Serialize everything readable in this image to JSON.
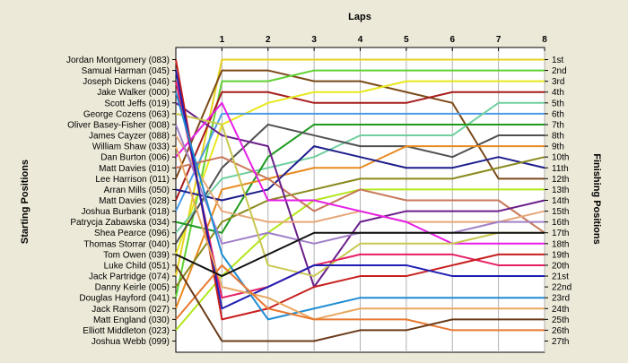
{
  "chart_data": {
    "type": "line",
    "title": "Laps",
    "ylabel_left": "Starting Positions",
    "ylabel_right": "Finishing Positions",
    "x": [
      0,
      1,
      2,
      3,
      4,
      5,
      6,
      7,
      8
    ],
    "x_tick_labels": [
      "1",
      "2",
      "3",
      "4",
      "5",
      "6",
      "7",
      "8"
    ],
    "xlim": [
      0,
      8
    ],
    "ylim": [
      1,
      27
    ],
    "grid": true,
    "starting_labels": [
      "Jordan Montgomery (083)",
      "Samual Harman (045)",
      "Joseph Dickens (046)",
      "Jake Walker (000)",
      "Scott Jeffs (019)",
      "George Cozens (063)",
      "Oliver Basey-Fisher (008)",
      "James Cayzer (088)",
      "William Shaw (033)",
      "Dan Burton (006)",
      "Matt Davies (010)",
      "Lee Harrison (011)",
      "Arran Mills (050)",
      "Matt Davies (028)",
      "Joshua Burbank (018)",
      "Patrycja Zabawska (034)",
      "Shea Pearce (096)",
      "Thomas Storrar (040)",
      "Tom Owen (039)",
      "Luke Child (051)",
      "Jack Partridge (074)",
      "Danny Keirle (005)",
      "Douglas Hayford (041)",
      "Jack Ransom (027)",
      "Matt England (030)",
      "Elliott Middleton (023)",
      "Joshua Webb (099)"
    ],
    "finishing_labels": [
      "1st",
      "2nd",
      "3rd",
      "4th",
      "5th",
      "6th",
      "7th",
      "8th",
      "9th",
      "10th",
      "11th",
      "12th",
      "13th",
      "14th",
      "15th",
      "16th",
      "17th",
      "18th",
      "19th",
      "20th",
      "21st",
      "22nd",
      "23rd",
      "24th",
      "25th",
      "26th",
      "27th"
    ],
    "series": [
      {
        "color": "#e6d21e",
        "values": [
          21,
          1,
          1,
          1,
          1,
          1,
          1,
          1,
          1
        ]
      },
      {
        "color": "#7b4a18",
        "values": [
          12,
          2,
          2,
          3,
          3,
          4,
          5,
          12,
          12
        ]
      },
      {
        "color": "#5fd232",
        "values": [
          23,
          3,
          3,
          2,
          2,
          2,
          2,
          2,
          2
        ]
      },
      {
        "color": "#a81c1c",
        "values": [
          14,
          4,
          4,
          5,
          5,
          5,
          4,
          4,
          4
        ]
      },
      {
        "color": "#e8e81e",
        "values": [
          19,
          7,
          5,
          4,
          4,
          3,
          3,
          3,
          3
        ]
      },
      {
        "color": "#4a9be6",
        "values": [
          15,
          6,
          6,
          6,
          6,
          6,
          6,
          6,
          6
        ]
      },
      {
        "color": "#72d0a0",
        "values": [
          17,
          12,
          11,
          10,
          8,
          8,
          8,
          5,
          5
        ]
      },
      {
        "color": "#1e9a1e",
        "values": [
          16,
          17,
          10,
          7,
          7,
          7,
          7,
          7,
          7
        ]
      },
      {
        "color": "#505050",
        "values": [
          18,
          11,
          7,
          8,
          9,
          9,
          10,
          8,
          8
        ]
      },
      {
        "color": "#e88a1e",
        "values": [
          24,
          13,
          12,
          11,
          11,
          9,
          9,
          9,
          9
        ]
      },
      {
        "color": "#1e1e8c",
        "values": [
          13,
          14,
          13,
          9,
          10,
          11,
          11,
          10,
          11
        ]
      },
      {
        "color": "#8a8a1e",
        "values": [
          22,
          16,
          14,
          13,
          12,
          12,
          12,
          11,
          10
        ]
      },
      {
        "color": "#b4e61e",
        "values": [
          26,
          21,
          17,
          14,
          13,
          13,
          13,
          13,
          13
        ]
      },
      {
        "color": "#c8785a",
        "values": [
          11,
          10,
          12,
          15,
          13,
          14,
          14,
          14,
          17
        ]
      },
      {
        "color": "#6a1e8a",
        "values": [
          5,
          8,
          9,
          22,
          16,
          15,
          15,
          15,
          14
        ]
      },
      {
        "color": "#e6a87a",
        "values": [
          8,
          15,
          16,
          16,
          15,
          16,
          16,
          16,
          15
        ]
      },
      {
        "color": "#e61ee6",
        "values": [
          10,
          5,
          14,
          14,
          15,
          16,
          18,
          18,
          18
        ]
      },
      {
        "color": "#a080c8",
        "values": [
          7,
          18,
          17,
          18,
          17,
          17,
          17,
          16,
          16
        ]
      },
      {
        "color": "#c8c850",
        "values": [
          6,
          7,
          20,
          21,
          18,
          18,
          18,
          17,
          17
        ]
      },
      {
        "color": "#e61e64",
        "values": [
          3,
          23,
          22,
          20,
          19,
          19,
          19,
          20,
          20
        ]
      },
      {
        "color": "#c81e1e",
        "values": [
          1,
          25,
          24,
          22,
          21,
          21,
          20,
          19,
          19
        ]
      },
      {
        "color": "#1e1eb4",
        "values": [
          2,
          24,
          22,
          20,
          20,
          20,
          21,
          21,
          21
        ]
      },
      {
        "color": "#1e8cd2",
        "values": [
          4,
          19,
          25,
          24,
          23,
          23,
          23,
          23,
          23
        ]
      },
      {
        "color": "#e8a860",
        "values": [
          9,
          22,
          23,
          25,
          24,
          24,
          24,
          24,
          24
        ]
      },
      {
        "color": "#e87830",
        "values": [
          25,
          20,
          24,
          25,
          25,
          25,
          26,
          26,
          26
        ]
      },
      {
        "color": "#6a3a18",
        "values": [
          20,
          27,
          27,
          27,
          26,
          26,
          25,
          25,
          25
        ]
      },
      {
        "color": "#101010",
        "values": [
          19,
          21,
          19,
          17,
          17,
          17,
          17,
          17,
          17
        ]
      }
    ]
  }
}
